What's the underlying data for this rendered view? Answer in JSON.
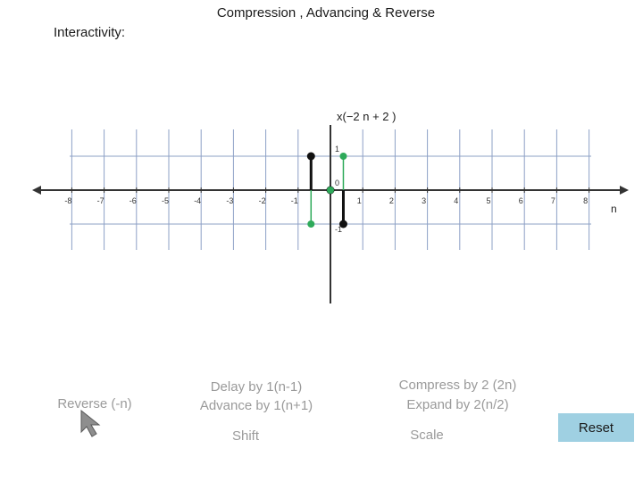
{
  "title": "Compression , Advancing & Reverse",
  "interactivity_label": "Interactivity:",
  "chart_data": {
    "type": "stem",
    "xlabel": "n",
    "signal_label": "x(−2 n + 2 )",
    "xlim": [
      -9,
      9
    ],
    "ylim": [
      -1,
      1
    ],
    "x_ticks": [
      "-8",
      "-7",
      "-6",
      "-5",
      "-4",
      "-3",
      "-2",
      "-1",
      "1",
      "2",
      "3",
      "4",
      "5",
      "6",
      "7",
      "8"
    ],
    "y_ticks": [
      {
        "value": 1,
        "label": "1"
      },
      {
        "value": 0,
        "label": "0"
      },
      {
        "value": -1,
        "label": "-1"
      }
    ],
    "series": [
      {
        "color": "#111111",
        "points": [
          {
            "n": -0.6,
            "y": 1
          },
          {
            "n": 0,
            "y": 0
          },
          {
            "n": 0.4,
            "y": -1
          }
        ]
      },
      {
        "color": "#2eaa5a",
        "points": [
          {
            "n": -0.6,
            "y": -1
          },
          {
            "n": 0,
            "y": 0
          },
          {
            "n": 0.4,
            "y": 1
          }
        ]
      }
    ]
  },
  "controls": {
    "reverse": "Reverse (-n)",
    "delay": "Delay by 1(n-1)",
    "advance": "Advance by 1(n+1)",
    "shift": "Shift",
    "compress": "Compress by 2 (2n)",
    "expand": "Expand by 2(n/2)",
    "scale": "Scale",
    "reset": "Reset"
  },
  "colors": {
    "grid": "#8da0c6",
    "axis": "#333333",
    "reset_bg": "#9fd0e2",
    "control_text": "#9a9a9a"
  },
  "icons": {
    "cursor": "arrow-pointer-icon"
  }
}
